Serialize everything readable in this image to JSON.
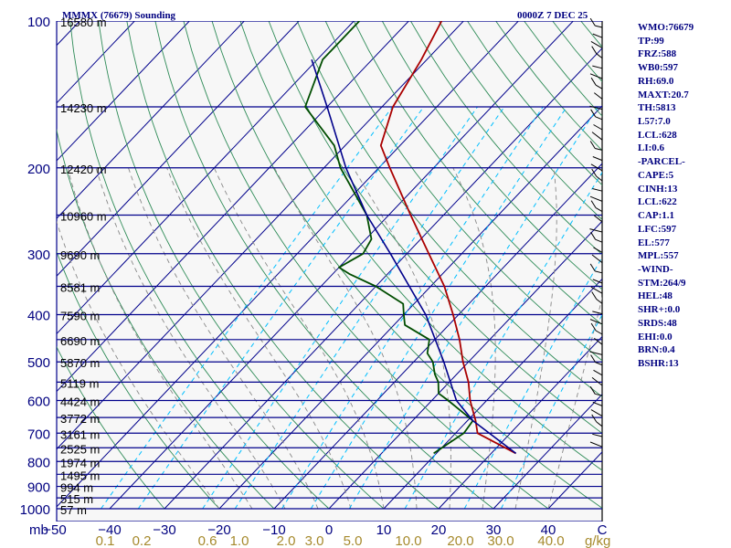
{
  "header": {
    "station": "MMMX (76679) Sounding",
    "time": "0000Z  7 DEC 25"
  },
  "colors": {
    "background": "#ffffff",
    "isobar": "#00008b",
    "skew_isotherm": "#00008b",
    "dry_adiabat": "#2e8b57",
    "moist_adiabat": "#888888",
    "mixing_ratio": "#00bfff",
    "temperature": "#aa0000",
    "dewpoint": "#004d00",
    "parcel": "#00008b",
    "wind_barb": "#000000",
    "stats_text": "#000080",
    "axis_text": "#000080",
    "mixing_label": "#a68a2d"
  },
  "chart_data": {
    "type": "line",
    "chart_kind": "skew-T log-p sounding",
    "y_scale": "log",
    "ylim": [
      1000,
      100
    ],
    "xlim": [
      -50,
      50
    ],
    "x_unit": "C",
    "y_unit": "mb",
    "pressure_labels": [
      {
        "p": 100,
        "label": "100",
        "height": "16580 m"
      },
      {
        "p": 150,
        "label": "",
        "height": "14230 m"
      },
      {
        "p": 200,
        "label": "200",
        "height": "12420 m"
      },
      {
        "p": 250,
        "label": "",
        "height": "10960 m"
      },
      {
        "p": 300,
        "label": "300",
        "height": "9690 m"
      },
      {
        "p": 350,
        "label": "",
        "height": "8581 m"
      },
      {
        "p": 400,
        "label": "400",
        "height": "7590 m"
      },
      {
        "p": 450,
        "label": "",
        "height": "6690 m"
      },
      {
        "p": 500,
        "label": "500",
        "height": "5870 m"
      },
      {
        "p": 550,
        "label": "",
        "height": "5119 m"
      },
      {
        "p": 600,
        "label": "600",
        "height": "4424 m"
      },
      {
        "p": 650,
        "label": "",
        "height": "3772 m"
      },
      {
        "p": 700,
        "label": "700",
        "height": "3161 m"
      },
      {
        "p": 750,
        "label": "",
        "height": "2525 m"
      },
      {
        "p": 800,
        "label": "800",
        "height": "1974 m"
      },
      {
        "p": 850,
        "label": "",
        "height": "1495 m"
      },
      {
        "p": 900,
        "label": "900",
        "height": "994 m"
      },
      {
        "p": 950,
        "label": "",
        "height": "515 m"
      },
      {
        "p": 1000,
        "label": "1000",
        "height": "57 m"
      }
    ],
    "temp_ticks": [
      -50,
      -40,
      -30,
      -20,
      -10,
      0,
      10,
      20,
      30,
      40
    ],
    "temp_tick_labels": [
      "−50",
      "−40",
      "−30",
      "−20",
      "−10",
      "0",
      "10",
      "20",
      "30",
      "40"
    ],
    "x_unit_label": "mb",
    "mixing_ratios": [
      "0.1",
      "0.2",
      "0.6",
      "1.0",
      "2.0",
      "3.0",
      "5.0",
      "10.0",
      "20.0",
      "30.0",
      "40.0"
    ],
    "mixing_unit": "g/kg",
    "wind_axis_label": "C",
    "series": [
      {
        "key": "temperature",
        "values": [
          [
            770,
            24.5
          ],
          [
            700,
            14
          ],
          [
            660,
            11.5
          ],
          [
            600,
            7
          ],
          [
            550,
            3.5
          ],
          [
            500,
            -1
          ],
          [
            450,
            -5.5
          ],
          [
            400,
            -11
          ],
          [
            350,
            -17.5
          ],
          [
            300,
            -26
          ],
          [
            250,
            -36
          ],
          [
            200,
            -48
          ],
          [
            180,
            -53.5
          ],
          [
            150,
            -58
          ],
          [
            120,
            -61
          ],
          [
            100,
            -64
          ]
        ]
      },
      {
        "key": "dewpoint",
        "values": [
          [
            770,
            9.5
          ],
          [
            700,
            11.5
          ],
          [
            660,
            11
          ],
          [
            600,
            3
          ],
          [
            580,
            0
          ],
          [
            550,
            -2
          ],
          [
            530,
            -4
          ],
          [
            500,
            -6.5
          ],
          [
            480,
            -9
          ],
          [
            450,
            -11
          ],
          [
            420,
            -18
          ],
          [
            400,
            -20
          ],
          [
            380,
            -22
          ],
          [
            350,
            -30
          ],
          [
            330,
            -37
          ],
          [
            320,
            -40
          ],
          [
            300,
            -38
          ],
          [
            280,
            -39
          ],
          [
            250,
            -44
          ],
          [
            200,
            -57
          ],
          [
            180,
            -62
          ],
          [
            150,
            -74
          ],
          [
            120,
            -79
          ],
          [
            100,
            -79
          ]
        ]
      },
      {
        "key": "parcel",
        "values": [
          [
            770,
            24.5
          ],
          [
            660,
            11
          ],
          [
            600,
            4.5
          ],
          [
            500,
            -4.5
          ],
          [
            400,
            -16
          ],
          [
            300,
            -33
          ],
          [
            250,
            -44
          ],
          [
            200,
            -56
          ],
          [
            150,
            -70
          ],
          [
            120,
            -81
          ]
        ]
      }
    ]
  },
  "stats": [
    "WMO:76679",
    "TP:99",
    "FRZ:588",
    "WB0:597",
    "RH:69.0",
    "MAXT:20.7",
    "TH:5813",
    "L57:7.0",
    "LCL:628",
    "LI:0.6",
    "-PARCEL-",
    "CAPE:5",
    "CINH:13",
    "LCL:622",
    "CAP:1.1",
    "LFC:597",
    "EL:577",
    "MPL:557",
    "-WIND-",
    "STM:264/9",
    "HEL:48",
    "SHR+:0.0",
    "SRDS:48",
    "EHI:0.0",
    "BRN:0.4",
    "BSHR:13"
  ]
}
